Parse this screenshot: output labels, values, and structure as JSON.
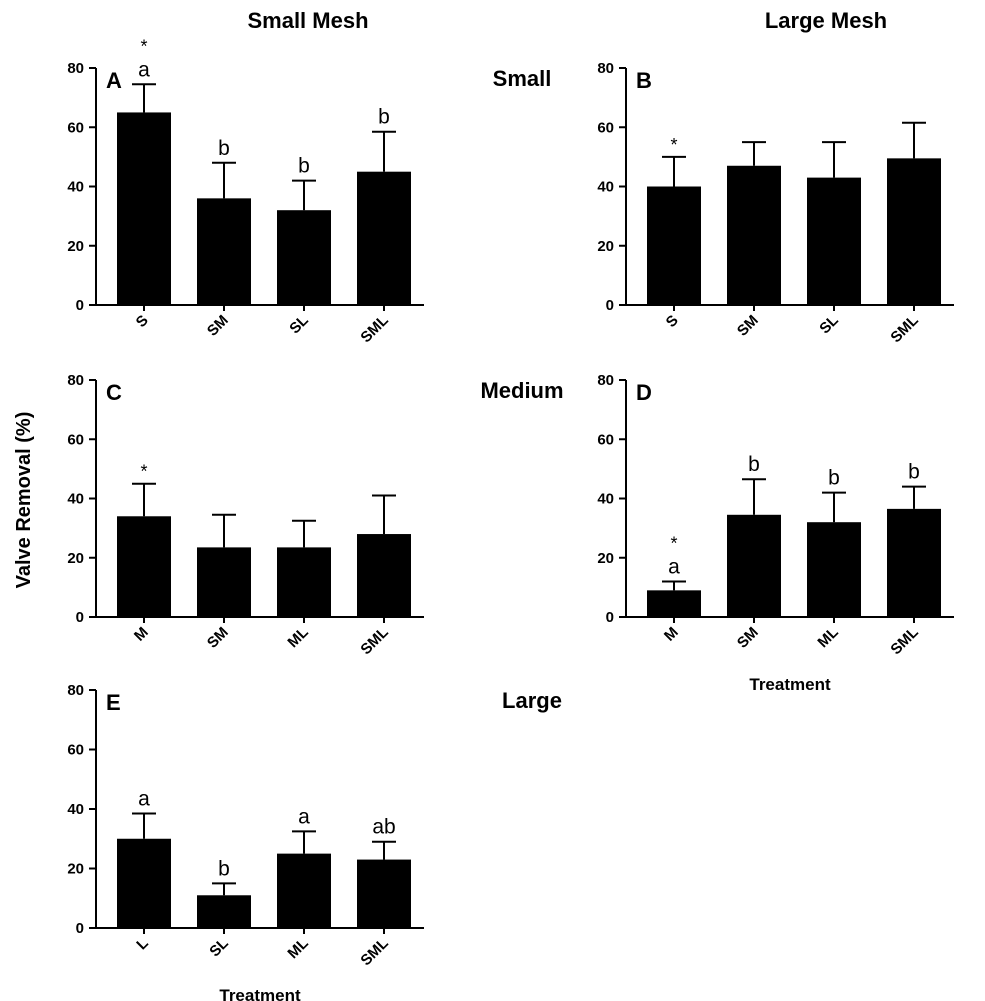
{
  "figure": {
    "column_titles": [
      "Small Mesh",
      "Large Mesh"
    ],
    "row_titles": [
      "Small",
      "Medium",
      "Large"
    ],
    "ylabel": "Valve Removal (%)",
    "xlabel": "Treatment",
    "colors": {
      "bar": "#000000",
      "background": "#ffffff"
    }
  },
  "chart_data": [
    {
      "panel": "A",
      "type": "bar",
      "categories": [
        "S",
        "SM",
        "SL",
        "SML"
      ],
      "values": [
        65,
        36,
        32,
        45
      ],
      "errors": [
        9.5,
        12,
        10,
        13.5
      ],
      "letters": [
        "a",
        "b",
        "b",
        "b"
      ],
      "stars": [
        "*",
        "",
        "",
        ""
      ],
      "ylim": [
        0,
        80
      ],
      "yticks": [
        0,
        20,
        40,
        60,
        80
      ],
      "xlabel": ""
    },
    {
      "panel": "B",
      "type": "bar",
      "categories": [
        "S",
        "SM",
        "SL",
        "SML"
      ],
      "values": [
        40,
        47,
        43,
        49.5
      ],
      "errors": [
        10,
        8,
        12,
        12
      ],
      "letters": [
        "",
        "",
        "",
        ""
      ],
      "stars": [
        "*",
        "",
        "",
        ""
      ],
      "ylim": [
        0,
        80
      ],
      "yticks": [
        0,
        20,
        40,
        60,
        80
      ],
      "xlabel": ""
    },
    {
      "panel": "C",
      "type": "bar",
      "categories": [
        "M",
        "SM",
        "ML",
        "SML"
      ],
      "values": [
        34,
        23.5,
        23.5,
        28
      ],
      "errors": [
        11,
        11,
        9,
        13
      ],
      "letters": [
        "",
        "",
        "",
        ""
      ],
      "stars": [
        "*",
        "",
        "",
        ""
      ],
      "ylim": [
        0,
        80
      ],
      "yticks": [
        0,
        20,
        40,
        60,
        80
      ],
      "xlabel": ""
    },
    {
      "panel": "D",
      "type": "bar",
      "categories": [
        "M",
        "SM",
        "ML",
        "SML"
      ],
      "values": [
        9,
        34.5,
        32,
        36.5
      ],
      "errors": [
        3,
        12,
        10,
        7.5
      ],
      "letters": [
        "a",
        "b",
        "b",
        "b"
      ],
      "stars": [
        "*",
        "",
        "",
        ""
      ],
      "ylim": [
        0,
        80
      ],
      "yticks": [
        0,
        20,
        40,
        60,
        80
      ],
      "xlabel": "Treatment"
    },
    {
      "panel": "E",
      "type": "bar",
      "categories": [
        "L",
        "SL",
        "ML",
        "SML"
      ],
      "values": [
        30,
        11,
        25,
        23
      ],
      "errors": [
        8.5,
        4,
        7.5,
        6
      ],
      "letters": [
        "a",
        "b",
        "a",
        "ab"
      ],
      "stars": [
        "",
        "",
        "",
        ""
      ],
      "ylim": [
        0,
        80
      ],
      "yticks": [
        0,
        20,
        40,
        60,
        80
      ],
      "xlabel": "Treatment"
    }
  ]
}
